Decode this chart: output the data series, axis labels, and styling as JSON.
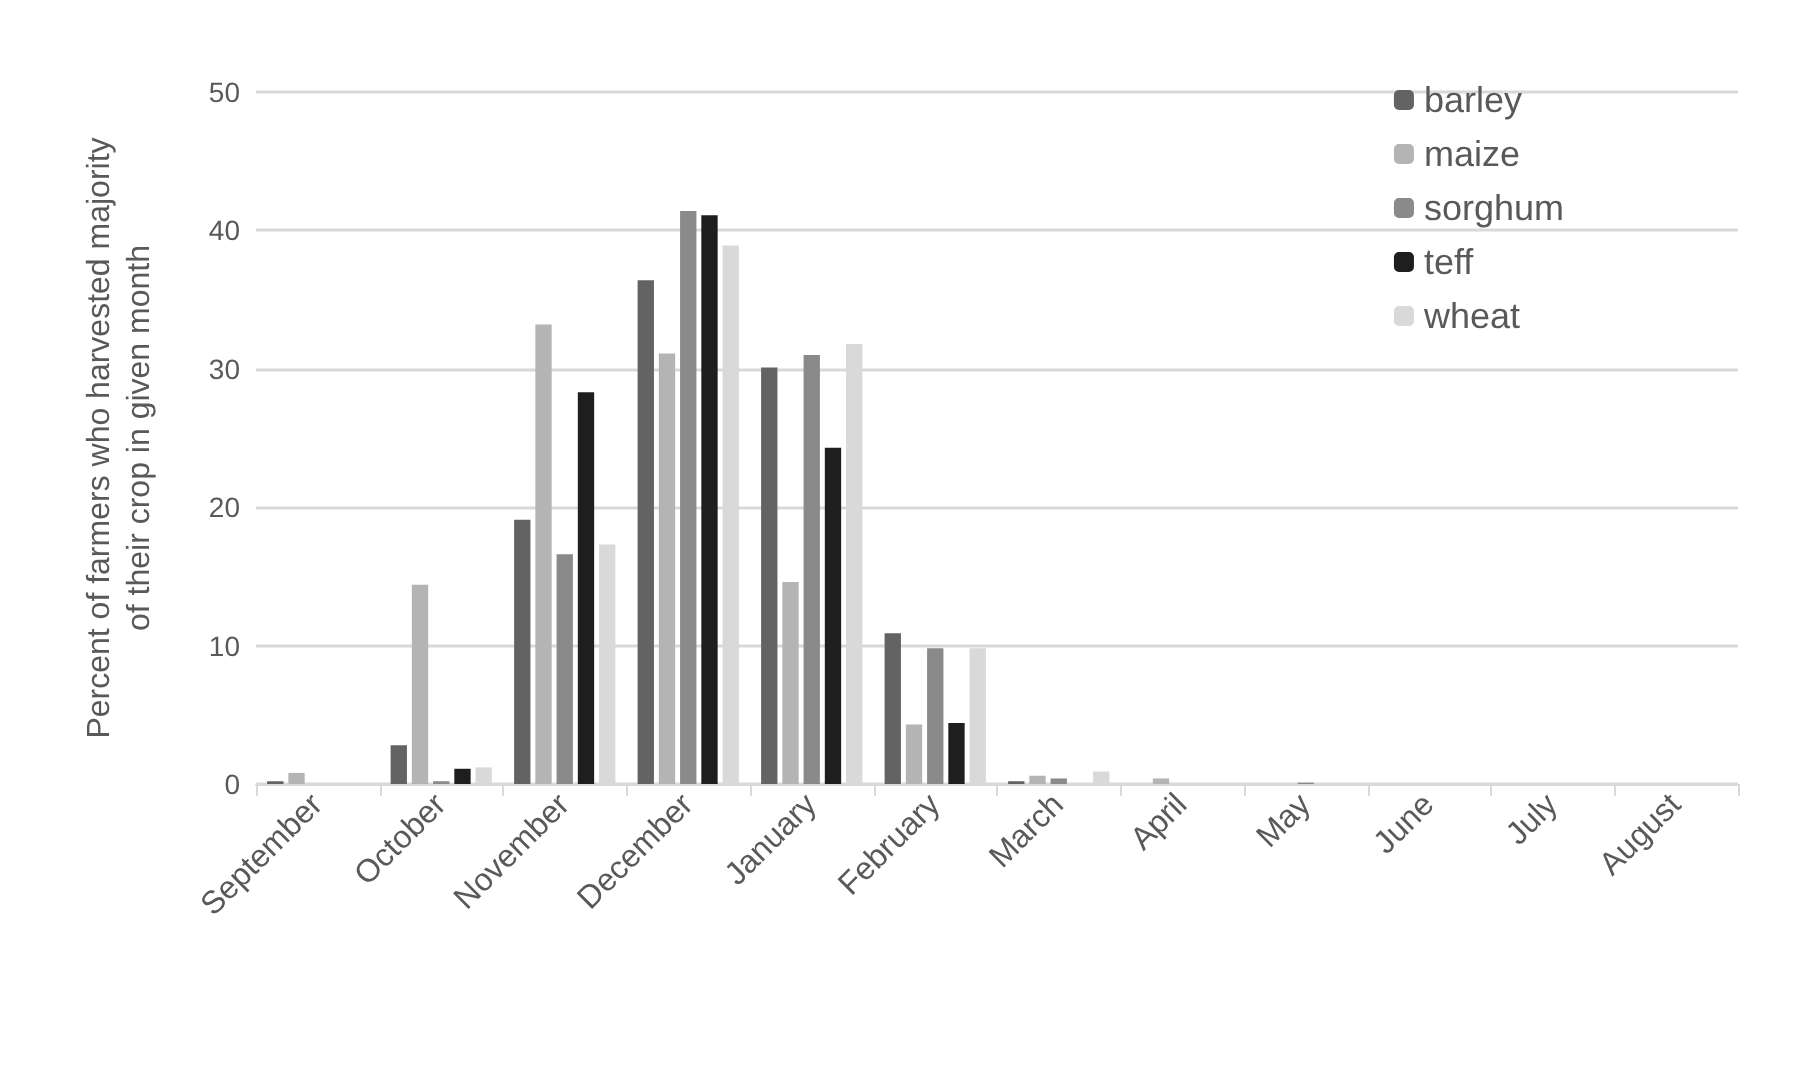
{
  "chart_data": {
    "type": "bar",
    "ylabel": "Percent of farmers who harvested majority\nof their crop in given month",
    "categories": [
      "September",
      "October",
      "November",
      "December",
      "January",
      "February",
      "March",
      "April",
      "May",
      "June",
      "July",
      "August"
    ],
    "series": [
      {
        "name": "barley",
        "color": "#636363",
        "values": [
          0.2,
          2.8,
          19.1,
          36.4,
          30.1,
          10.9,
          0.2,
          0,
          0,
          0,
          0,
          0
        ]
      },
      {
        "name": "maize",
        "color": "#b4b4b4",
        "values": [
          0.8,
          14.4,
          33.2,
          31.1,
          14.6,
          4.3,
          0.6,
          0.4,
          null,
          0,
          0,
          0
        ]
      },
      {
        "name": "sorghum",
        "color": "#8a8a8a",
        "values": [
          0,
          0.2,
          16.6,
          41.4,
          31.0,
          9.8,
          0.4,
          0,
          0.1,
          0,
          0,
          0
        ]
      },
      {
        "name": "teff",
        "color": "#1e1e1e",
        "values": [
          0,
          1.1,
          28.3,
          41.1,
          24.3,
          4.4,
          0,
          0,
          0,
          0,
          0,
          0
        ]
      },
      {
        "name": "wheat",
        "color": "#d9d9d9",
        "values": [
          0,
          1.2,
          17.3,
          38.9,
          31.8,
          9.8,
          0.9,
          null,
          0,
          0,
          0,
          0
        ]
      }
    ],
    "ylim": [
      0,
      50
    ],
    "yticks": [
      0,
      10,
      20,
      30,
      40,
      50
    ],
    "grid": "y",
    "legend": "top right"
  }
}
